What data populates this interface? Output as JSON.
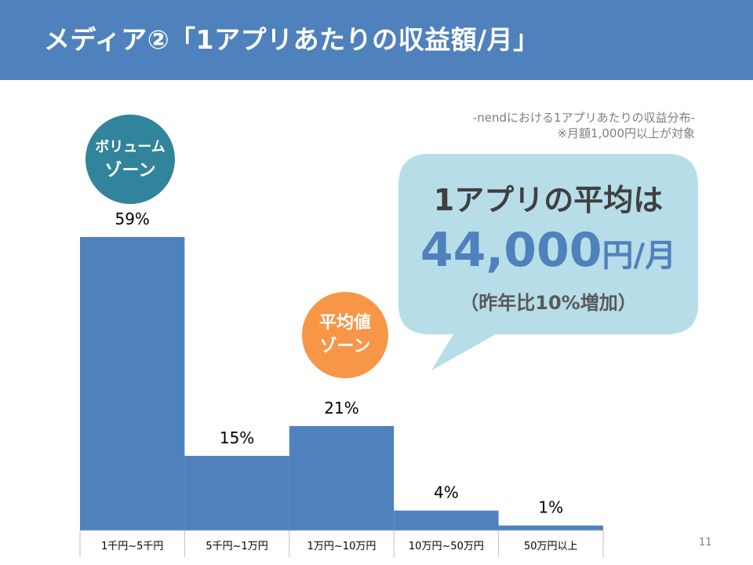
{
  "slide": {
    "title": "メディア②「1アプリあたりの収益額/月」",
    "page_number": "11"
  },
  "subtitle": {
    "line1": "-nendにおける1アプリあたりの収益分布-",
    "line2": "※月額1,000円以上が対象"
  },
  "badges": {
    "volume": {
      "line1": "ボリューム",
      "line2": "ゾーン",
      "color": "#31849b"
    },
    "average": {
      "line1": "平均値",
      "line2": "ゾーン",
      "color": "#f79646"
    }
  },
  "callout": {
    "line1": "1アプリの平均は",
    "amount": "44,000",
    "unit": "円/月",
    "line3": "（昨年比10%増加）",
    "color": "#b7dde8"
  },
  "chart_data": {
    "type": "bar",
    "categories": [
      "1千円~5千円",
      "5千円~1万円",
      "1万円~10万円",
      "10万円~50万円",
      "50万円以上"
    ],
    "values": [
      59,
      15,
      21,
      4,
      1
    ],
    "data_labels": [
      "59%",
      "15%",
      "21%",
      "4%",
      "1%"
    ],
    "bar_color": "#4f81bd",
    "ylim": [
      0,
      65
    ]
  }
}
